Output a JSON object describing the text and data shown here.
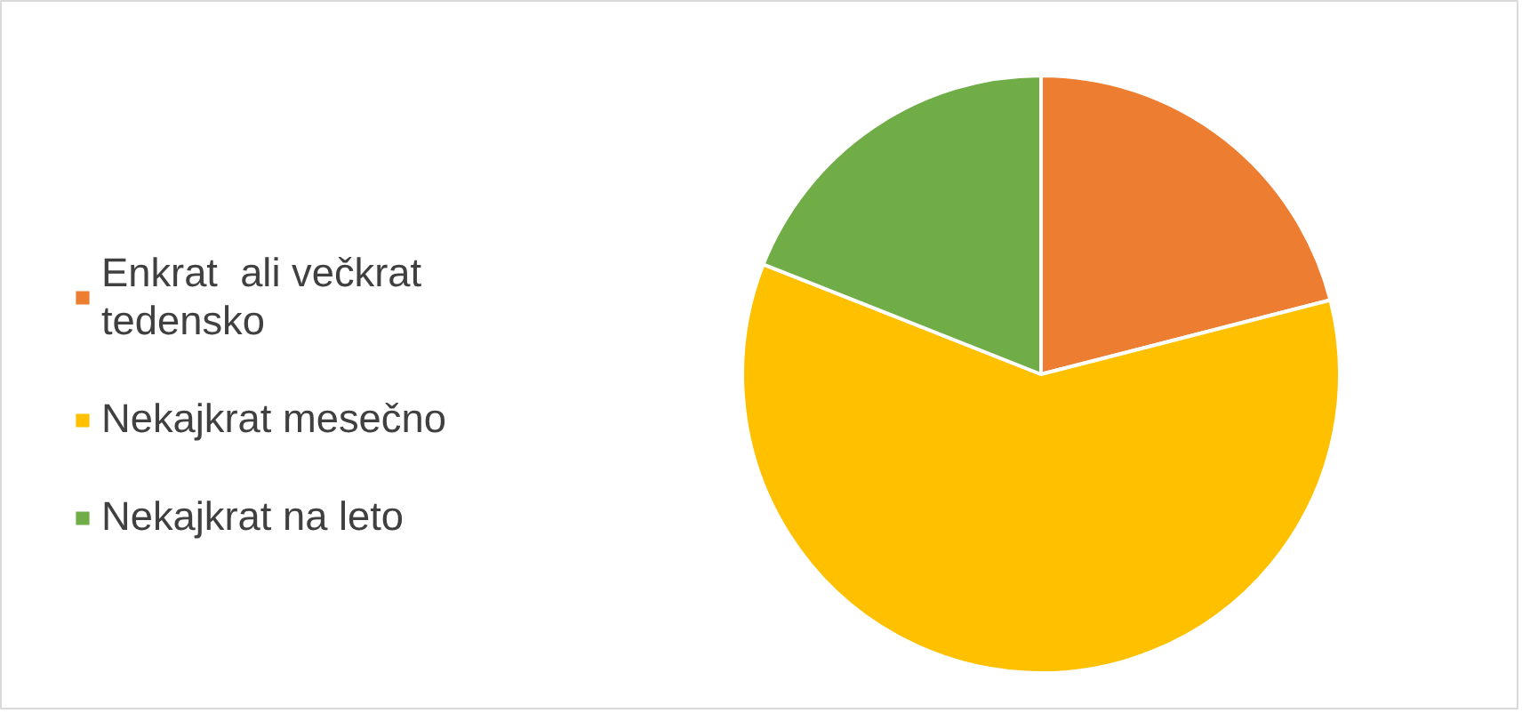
{
  "chart_data": {
    "type": "pie",
    "categories": [
      "Enkrat  ali večkrat tedensko",
      "Nekajkrat mesečno",
      "Nekajkrat na leto"
    ],
    "values": [
      21,
      60,
      19
    ],
    "colors": [
      "#ed7d31",
      "#ffc000",
      "#70ad47"
    ],
    "legend": "left"
  }
}
